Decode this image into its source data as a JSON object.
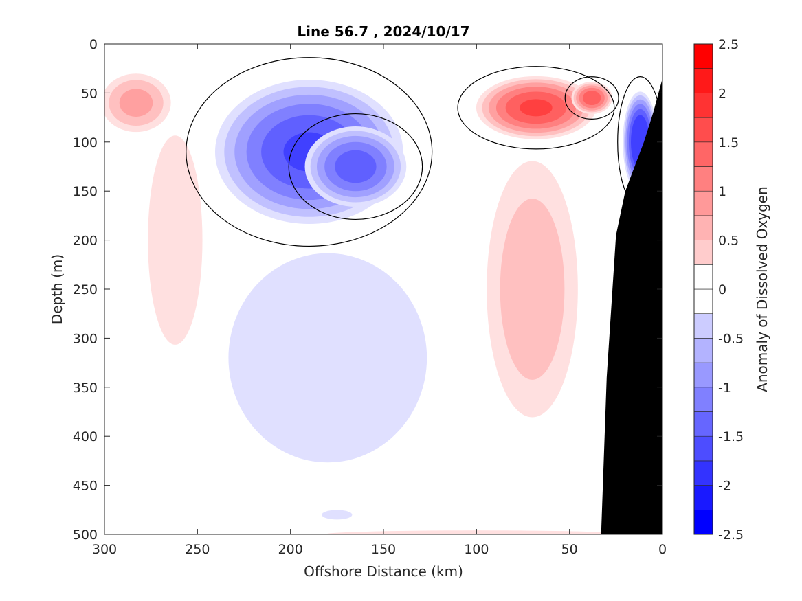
{
  "chart_data": {
    "type": "heatmap",
    "subtype": "filled-contour",
    "title": "Line 56.7 , 2024/10/17",
    "xlabel": "Offshore Distance (km)",
    "ylabel": "Depth (m)",
    "colorbar_label": "Anomaly of Dissolved Oxygen",
    "xlim": [
      300,
      0
    ],
    "ylim": [
      500,
      0
    ],
    "x_reversed": true,
    "y_reversed": true,
    "x_ticks": [
      "300",
      "250",
      "200",
      "150",
      "100",
      "50",
      "0"
    ],
    "y_ticks": [
      "0",
      "50",
      "100",
      "150",
      "200",
      "250",
      "300",
      "350",
      "400",
      "450",
      "500"
    ],
    "colorbar_ticks": [
      "2.5",
      "2",
      "1.5",
      "1",
      "0.5",
      "0",
      "-0.5",
      "-1",
      "-1.5",
      "-2",
      "-2.5"
    ],
    "colorbar_range": [
      -2.5,
      2.5
    ],
    "contour_step": 0.25,
    "zero_contour_color": "#000000",
    "bathymetry_color": "#000000",
    "bathymetry": [
      [
        0,
        35
      ],
      [
        5,
        70
      ],
      [
        10,
        100
      ],
      [
        15,
        125
      ],
      [
        20,
        150
      ],
      [
        25,
        195
      ],
      [
        30,
        340
      ],
      [
        33,
        500
      ]
    ],
    "levels": [
      {
        "value": 0.25,
        "color": "#ffe0e0"
      },
      {
        "value": 0.5,
        "color": "#ffc0c0"
      },
      {
        "value": 0.75,
        "color": "#ffa0a0"
      },
      {
        "value": 1.0,
        "color": "#ff8080"
      },
      {
        "value": 1.25,
        "color": "#ff6060"
      },
      {
        "value": 1.5,
        "color": "#ff4040"
      },
      {
        "value": -0.25,
        "color": "#e0e0ff"
      },
      {
        "value": -0.5,
        "color": "#c0c0ff"
      },
      {
        "value": -0.75,
        "color": "#a0a0ff"
      },
      {
        "value": -1.0,
        "color": "#8080ff"
      },
      {
        "value": -1.25,
        "color": "#6060ff"
      },
      {
        "value": -1.5,
        "color": "#4040ff"
      }
    ],
    "features": [
      {
        "name": "positive-anomaly-offshore-west",
        "sign": 1,
        "peak": 0.9,
        "center": [
          283,
          60
        ],
        "extent": [
          22,
          35
        ]
      },
      {
        "name": "positive-anomaly-offshore-column",
        "sign": 1,
        "peak": 0.45,
        "center": [
          262,
          200
        ],
        "extent": [
          22,
          160
        ]
      },
      {
        "name": "negative-anomaly-core",
        "sign": -1,
        "peak": 1.6,
        "center": [
          190,
          110
        ],
        "extent": [
          55,
          80
        ]
      },
      {
        "name": "negative-anomaly-core-east",
        "sign": -1,
        "peak": 1.45,
        "center": [
          165,
          125
        ],
        "extent": [
          30,
          45
        ]
      },
      {
        "name": "negative-anomaly-deep",
        "sign": -1,
        "peak": 0.45,
        "center": [
          180,
          320
        ],
        "extent": [
          80,
          160
        ]
      },
      {
        "name": "positive-anomaly-nearshore-core",
        "sign": 1,
        "peak": 1.6,
        "center": [
          68,
          65
        ],
        "extent": [
          35,
          35
        ]
      },
      {
        "name": "positive-anomaly-nearshore-small",
        "sign": 1,
        "peak": 1.5,
        "center": [
          38,
          55
        ],
        "extent": [
          12,
          18
        ]
      },
      {
        "name": "positive-anomaly-nearshore-column",
        "sign": 1,
        "peak": 0.75,
        "center": [
          70,
          250
        ],
        "extent": [
          30,
          160
        ]
      },
      {
        "name": "negative-anomaly-slope",
        "sign": -1,
        "peak": 2.0,
        "center": [
          12,
          100
        ],
        "extent": [
          10,
          55
        ]
      },
      {
        "name": "negative-anomaly-bottom",
        "sign": -1,
        "peak": 0.3,
        "center": [
          175,
          480
        ],
        "extent": [
          20,
          12
        ]
      },
      {
        "name": "positive-anomaly-bottom",
        "sign": 1,
        "peak": 0.3,
        "center": [
          100,
          500
        ],
        "extent": [
          200,
          10
        ]
      }
    ],
    "grid": false,
    "legend": "colorbar-right"
  }
}
